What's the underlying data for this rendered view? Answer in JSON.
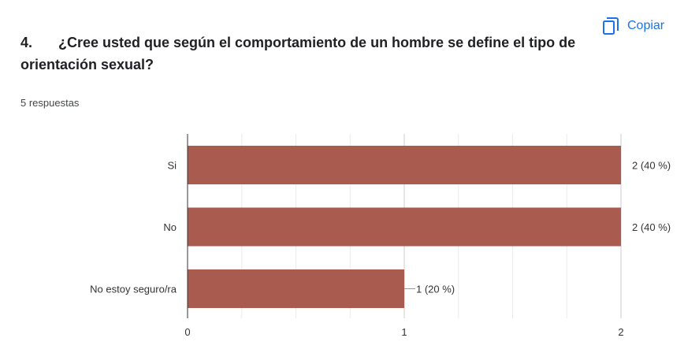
{
  "copy": {
    "label": "Copiar",
    "icon": "copy-icon"
  },
  "question": {
    "number": "4.",
    "text": "¿Cree usted que según el comportamiento de un hombre se define el tipo de orientación sexual?"
  },
  "responses_text": "5 respuestas",
  "colors": {
    "bar": "#a95b50",
    "accent": "#1a73e8",
    "axis": "#333333",
    "grid": "#e0e0e0"
  },
  "chart_data": {
    "type": "bar",
    "orientation": "horizontal",
    "categories": [
      "Si",
      "No",
      "No estoy seguro/ra"
    ],
    "values": [
      2,
      2,
      1
    ],
    "data_labels": [
      "2 (40 %)",
      "2 (40 %)",
      "1 (20 %)"
    ],
    "xlim": [
      0,
      2
    ],
    "xticks": [
      "0",
      "1",
      "2"
    ],
    "grid": true,
    "title": "",
    "xlabel": "",
    "ylabel": ""
  }
}
